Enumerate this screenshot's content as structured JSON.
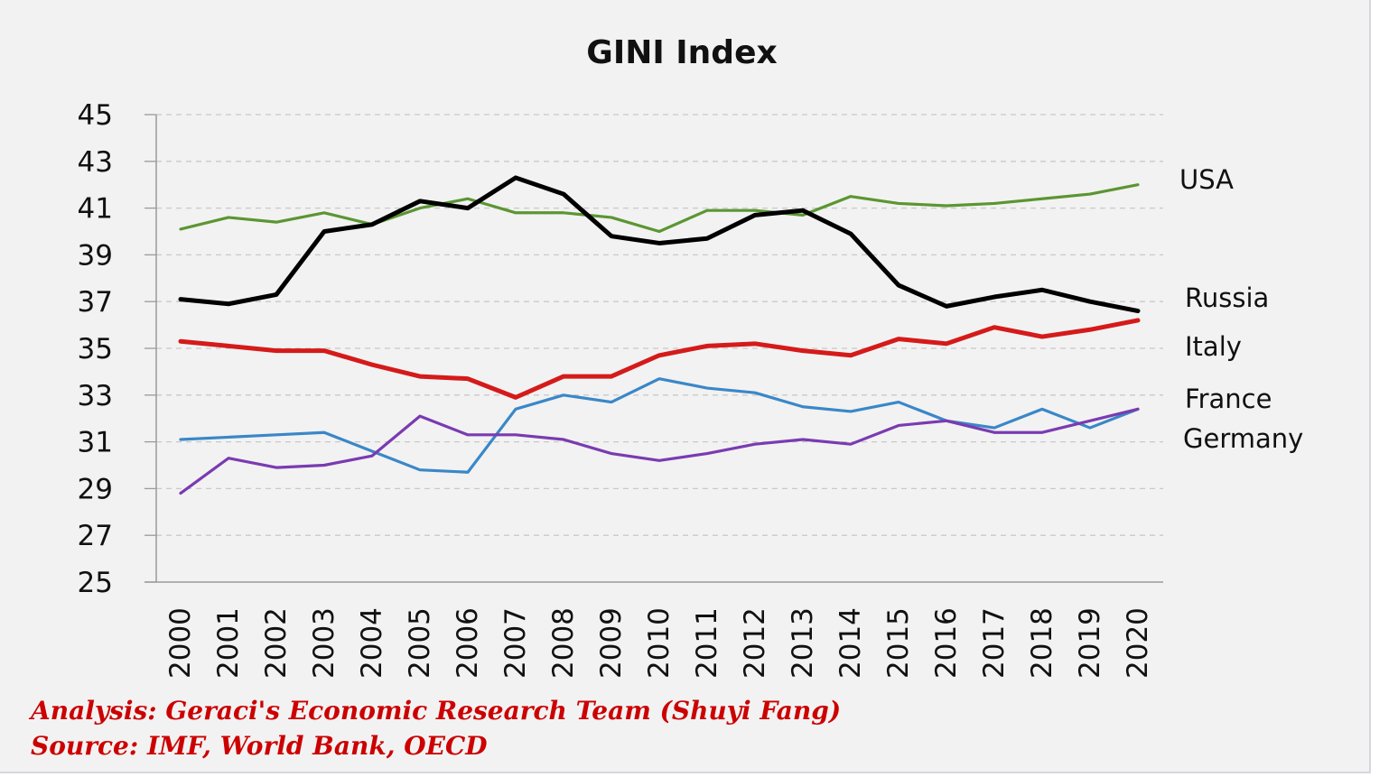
{
  "chart_data": {
    "type": "line",
    "title": "GINI Index",
    "xlabel": "",
    "ylabel": "",
    "ylim": [
      25,
      45
    ],
    "yticks": [
      25,
      27,
      29,
      31,
      33,
      35,
      37,
      39,
      41,
      43,
      45
    ],
    "categories": [
      "2000",
      "2001",
      "2002",
      "2003",
      "2004",
      "2005",
      "2006",
      "2007",
      "2008",
      "2009",
      "2010",
      "2011",
      "2012",
      "2013",
      "2014",
      "2015",
      "2016",
      "2017",
      "2018",
      "2019",
      "2020"
    ],
    "grid": "horizontal dashed",
    "legend": "inline labels at right end of lines",
    "series": [
      {
        "name": "USA",
        "color": "#5b9632",
        "values": [
          40.1,
          40.6,
          40.4,
          40.8,
          40.3,
          41.0,
          41.4,
          40.8,
          40.8,
          40.6,
          40.0,
          40.9,
          40.9,
          40.7,
          41.5,
          41.2,
          41.1,
          41.2,
          41.4,
          41.6,
          42.0
        ]
      },
      {
        "name": "Russia",
        "color": "#000000",
        "values": [
          37.1,
          36.9,
          37.3,
          40.0,
          40.3,
          41.3,
          41.0,
          42.3,
          41.6,
          39.8,
          39.5,
          39.7,
          40.7,
          40.9,
          39.9,
          37.7,
          36.8,
          37.2,
          37.5,
          37.0,
          36.6
        ]
      },
      {
        "name": "Italy",
        "color": "#d51a1a",
        "values": [
          35.3,
          35.1,
          34.9,
          34.9,
          34.3,
          33.8,
          33.7,
          32.9,
          33.8,
          33.8,
          34.7,
          35.1,
          35.2,
          34.9,
          34.7,
          35.4,
          35.2,
          35.9,
          35.5,
          35.8,
          36.2
        ]
      },
      {
        "name": "France",
        "color": "#3a87c8",
        "values": [
          31.1,
          31.2,
          31.3,
          31.4,
          30.6,
          29.8,
          29.7,
          32.4,
          33.0,
          32.7,
          33.7,
          33.3,
          33.1,
          32.5,
          32.3,
          32.7,
          31.9,
          31.6,
          32.4,
          31.6,
          32.4
        ]
      },
      {
        "name": "Germany",
        "color": "#7a3bb1",
        "values": [
          28.8,
          30.3,
          29.9,
          30.0,
          30.4,
          32.1,
          31.3,
          31.3,
          31.1,
          30.5,
          30.2,
          30.5,
          30.9,
          31.1,
          30.9,
          31.7,
          31.9,
          31.4,
          31.4,
          31.9,
          32.4
        ]
      }
    ]
  },
  "footer": {
    "analysis": "Analysis: Geraci's Economic Research Team (Shuyi Fang)",
    "source": "Source: IMF, World Bank, OECD",
    "color": "#cc0000"
  }
}
